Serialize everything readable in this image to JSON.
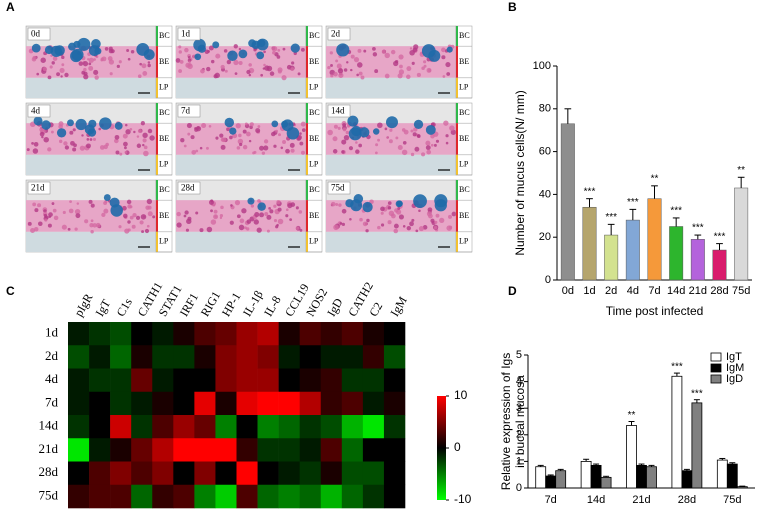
{
  "panel_letters": [
    "A",
    "B",
    "C",
    "D"
  ],
  "micrographs": {
    "labels": [
      "0d",
      "1d",
      "2d",
      "4d",
      "7d",
      "14d",
      "21d",
      "28d",
      "75d"
    ],
    "layers": [
      "BC",
      "BE",
      "LP"
    ]
  },
  "chart_data": [
    {
      "type": "bar",
      "categories": [
        "0d",
        "1d",
        "2d",
        "4d",
        "7d",
        "14d",
        "21d",
        "28d",
        "75d"
      ],
      "values": [
        73,
        34,
        21,
        28,
        38,
        25,
        19,
        14,
        43
      ],
      "errors": [
        7,
        4,
        5,
        5,
        6,
        4,
        2,
        3,
        5
      ],
      "colors": [
        "#8e8e8e",
        "#b5a56d",
        "#d3e28f",
        "#82a7d6",
        "#f5993a",
        "#2db52d",
        "#b463dc",
        "#d91c6c",
        "#d9d9d9"
      ],
      "annotations": [
        null,
        "***",
        "***",
        "***",
        "**",
        "***",
        "***",
        "***",
        "**"
      ],
      "ylim": [
        0,
        100
      ],
      "yticks": [
        0,
        20,
        40,
        60,
        80,
        100
      ],
      "ylabel": "Number of mucus cells(N/ mm)",
      "xlabel": "Time post infected"
    },
    {
      "type": "heatmap",
      "rows": [
        "1d",
        "2d",
        "4d",
        "7d",
        "14d",
        "21d",
        "28d",
        "75d"
      ],
      "columns": [
        "pIgR",
        "IgT",
        "C1s",
        "CATH1",
        "STAT1",
        "IRF1",
        "RIG1",
        "HP-1",
        "IL-1β",
        "IL-8",
        "CCL19",
        "NOS2",
        "IgD",
        "CATH2",
        "C2",
        "IgM"
      ],
      "values": [
        [
          -1,
          -2,
          -3,
          0,
          -1,
          1,
          3,
          4,
          6,
          7,
          1,
          3,
          2,
          3,
          1,
          0
        ],
        [
          -3,
          -1,
          -4,
          1,
          -2,
          -2,
          1,
          5,
          6,
          5,
          -1,
          0,
          -1,
          -1,
          2,
          -3
        ],
        [
          -1,
          -2,
          -2,
          4,
          -1,
          0,
          0,
          5,
          6,
          6,
          0,
          1,
          2,
          -2,
          -2,
          0
        ],
        [
          -1,
          0,
          -2,
          -1,
          1,
          0,
          9,
          1,
          9,
          10,
          10,
          7,
          2,
          3,
          -1,
          1
        ],
        [
          -2,
          0,
          8,
          -2,
          3,
          6,
          4,
          -5,
          0,
          -5,
          -4,
          -2,
          -3,
          -7,
          -9,
          -2
        ],
        [
          -9,
          -1,
          1,
          4,
          7,
          10,
          10,
          10,
          2,
          -2,
          -2,
          -1,
          3,
          -4,
          0,
          0
        ],
        [
          0,
          3,
          5,
          3,
          5,
          0,
          5,
          0,
          10,
          0,
          -1,
          -2,
          1,
          -3,
          -3,
          0
        ],
        [
          2,
          3,
          3,
          -4,
          2,
          3,
          -5,
          -8,
          3,
          -4,
          -5,
          -4,
          -7,
          -4,
          -2,
          0
        ]
      ],
      "clim": [
        -10,
        10
      ],
      "cticks": [
        10,
        0,
        -10
      ],
      "colormap": [
        "#00ff00",
        "#000000",
        "#ff0000"
      ]
    },
    {
      "type": "grouped_bar",
      "categories": [
        "7d",
        "14d",
        "21d",
        "28d",
        "75d"
      ],
      "series": [
        {
          "name": "IgT",
          "color": "#ffffff",
          "values": [
            0.8,
            1.0,
            2.35,
            4.2,
            1.05
          ],
          "errors": [
            0.05,
            0.08,
            0.15,
            0.12,
            0.06
          ],
          "annotations": [
            null,
            null,
            "**",
            "***",
            null
          ]
        },
        {
          "name": "IgM",
          "color": "#000000",
          "values": [
            0.45,
            0.85,
            0.85,
            0.65,
            0.9
          ],
          "errors": [
            0.04,
            0.05,
            0.05,
            0.05,
            0.05
          ],
          "annotations": [
            null,
            null,
            null,
            null,
            null
          ]
        },
        {
          "name": "IgD",
          "color": "#808080",
          "values": [
            0.65,
            0.4,
            0.8,
            3.2,
            0.05
          ],
          "errors": [
            0.05,
            0.04,
            0.05,
            0.12,
            0.02
          ],
          "annotations": [
            null,
            null,
            null,
            "***",
            null
          ]
        }
      ],
      "ylim": [
        0,
        5
      ],
      "yticks": [
        0,
        1,
        2,
        3,
        4,
        5
      ],
      "ylabel": [
        "Relative expression of Igs",
        "in buccal mucosa"
      ]
    }
  ]
}
